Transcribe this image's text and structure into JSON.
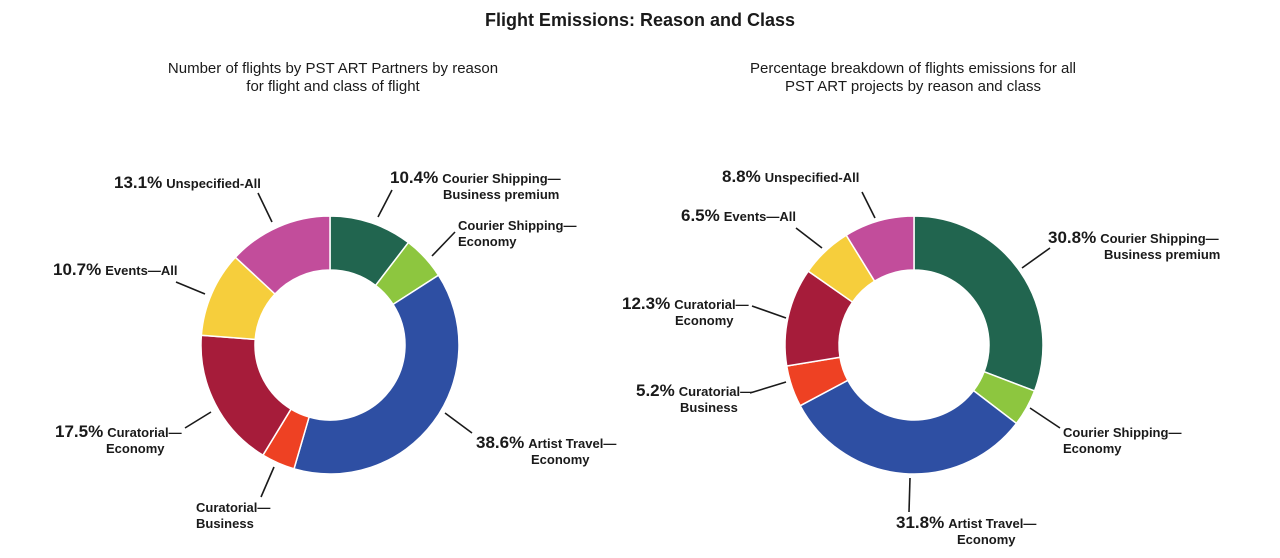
{
  "title": "Flight Emissions: Reason and Class",
  "chart_data": [
    {
      "type": "pie",
      "donut": true,
      "title": "Number of flights by PST ART Partners by reason for flight and class of flight",
      "title_lines": [
        "Number of flights by PST ART Partners by reason",
        "for flight and class of flight"
      ],
      "categories": [
        "Courier Shipping—Business premium",
        "Courier Shipping—Economy",
        "Artist Travel—Economy",
        "Curatorial—Business",
        "Curatorial—Economy",
        "Events—All",
        "Unspecified-All"
      ],
      "values": [
        10.4,
        5.5,
        38.6,
        4.2,
        17.5,
        10.7,
        13.1
      ],
      "labels": [
        {
          "pct": "10.4%",
          "l1": "Courier Shipping—",
          "l2": "Business premium"
        },
        {
          "pct": "",
          "l1": "Courier Shipping—",
          "l2": "Economy"
        },
        {
          "pct": "38.6%",
          "l1": "Artist Travel—",
          "l2": "Economy"
        },
        {
          "pct": "",
          "l1": "Curatorial—",
          "l2": "Business"
        },
        {
          "pct": "17.5%",
          "l1": "Curatorial—",
          "l2": "Economy"
        },
        {
          "pct": "10.7%",
          "l1": "Events—All",
          "l2": ""
        },
        {
          "pct": "13.1%",
          "l1": "Unspecified-All",
          "l2": ""
        }
      ]
    },
    {
      "type": "pie",
      "donut": true,
      "title": "Percentage breakdown of flights emissions for all PST ART projects by reason and class",
      "title_lines": [
        "Percentage breakdown of flights emissions for all",
        "PST ART projects by reason and class"
      ],
      "categories": [
        "Courier Shipping—Business premium",
        "Courier Shipping—Economy",
        "Artist Travel—Economy",
        "Curatorial—Business",
        "Curatorial—Economy",
        "Events—All",
        "Unspecified-All"
      ],
      "values": [
        30.8,
        4.6,
        31.8,
        5.2,
        12.3,
        6.5,
        8.8
      ],
      "labels": [
        {
          "pct": "30.8%",
          "l1": "Courier Shipping—",
          "l2": "Business premium"
        },
        {
          "pct": "",
          "l1": "Courier Shipping—",
          "l2": "Economy"
        },
        {
          "pct": "31.8%",
          "l1": "Artist Travel—",
          "l2": "Economy"
        },
        {
          "pct": "5.2%",
          "l1": "Curatorial—",
          "l2": "Business"
        },
        {
          "pct": "12.3%",
          "l1": "Curatorial—",
          "l2": "Economy"
        },
        {
          "pct": "6.5%",
          "l1": "Events—All",
          "l2": ""
        },
        {
          "pct": "8.8%",
          "l1": "Unspecified-All",
          "l2": ""
        }
      ]
    }
  ],
  "colors": [
    "#21654f",
    "#8dc63f",
    "#2e4fa3",
    "#ee4123",
    "#a61c3a",
    "#f6ce3c",
    "#c24d9b"
  ]
}
